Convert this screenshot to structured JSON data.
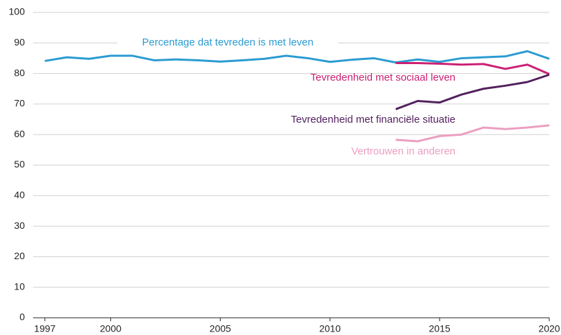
{
  "chart_data": {
    "type": "line",
    "x": [
      1997,
      1998,
      1999,
      2000,
      2001,
      2002,
      2003,
      2004,
      2005,
      2006,
      2007,
      2008,
      2009,
      2010,
      2011,
      2012,
      2013,
      2014,
      2015,
      2016,
      2017,
      2018,
      2019,
      2020
    ],
    "series": [
      {
        "name": "Percentage dat tevreden is met leven",
        "color": "#2a9bd1",
        "values": [
          84.1,
          85.3,
          84.8,
          85.8,
          85.8,
          84.3,
          84.6,
          84.3,
          83.9,
          84.3,
          84.8,
          85.8,
          85.0,
          83.8,
          84.5,
          85.0,
          83.6,
          84.6,
          83.8,
          85.0,
          85.3,
          85.6,
          87.3,
          84.8
        ]
      },
      {
        "name": "Tevredenheid met sociaal leven",
        "color": "#cc1f73",
        "values": [
          null,
          null,
          null,
          null,
          null,
          null,
          null,
          null,
          null,
          null,
          null,
          null,
          null,
          null,
          null,
          null,
          83.4,
          83.4,
          83.2,
          82.9,
          83.1,
          81.5,
          82.9,
          79.8
        ]
      },
      {
        "name": "Tevredenheid met financiële situatie",
        "color": "#52215e",
        "values": [
          null,
          null,
          null,
          null,
          null,
          null,
          null,
          null,
          null,
          null,
          null,
          null,
          null,
          null,
          null,
          null,
          68.3,
          71.0,
          70.5,
          73.1,
          75.0,
          76.0,
          77.2,
          79.6
        ]
      },
      {
        "name": "Vertrouwen in anderen",
        "color": "#eb9ec0",
        "values": [
          null,
          null,
          null,
          null,
          null,
          null,
          null,
          null,
          null,
          null,
          null,
          null,
          null,
          null,
          null,
          null,
          58.3,
          57.8,
          59.5,
          60.0,
          62.3,
          61.8,
          62.3,
          63.0
        ]
      }
    ],
    "xlim": [
      1997,
      2020
    ],
    "xticks": [
      1997,
      2000,
      2005,
      2010,
      2015,
      2020
    ],
    "ylim": [
      0,
      100
    ],
    "yticks": [
      0,
      10,
      20,
      30,
      40,
      50,
      60,
      70,
      80,
      90,
      100
    ],
    "grid": true
  }
}
